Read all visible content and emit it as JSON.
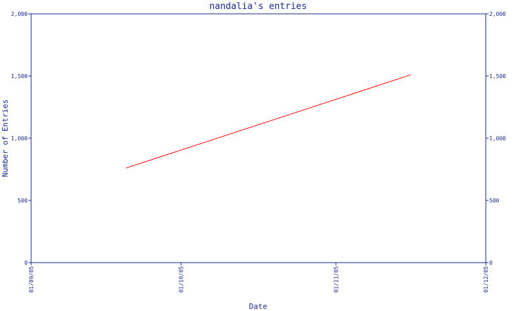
{
  "chart_data": {
    "type": "line",
    "title": "nandalia's entries",
    "xlabel": "Date",
    "ylabel": "Number of Entries",
    "x_ticks": [
      "01/09/05",
      "01/10/05",
      "01/11/05",
      "01/12/05"
    ],
    "y_ticks": [
      "0",
      "500",
      "1,000",
      "1,500",
      "2,000"
    ],
    "y_tick_values": [
      0,
      500,
      1000,
      1500,
      2000
    ],
    "ylim": [
      0,
      2000
    ],
    "grid": false,
    "series": [
      {
        "color": "#ff0000",
        "x": [
          "2005-09-20",
          "2005-11-16"
        ],
        "y": [
          760,
          1510
        ]
      }
    ]
  }
}
